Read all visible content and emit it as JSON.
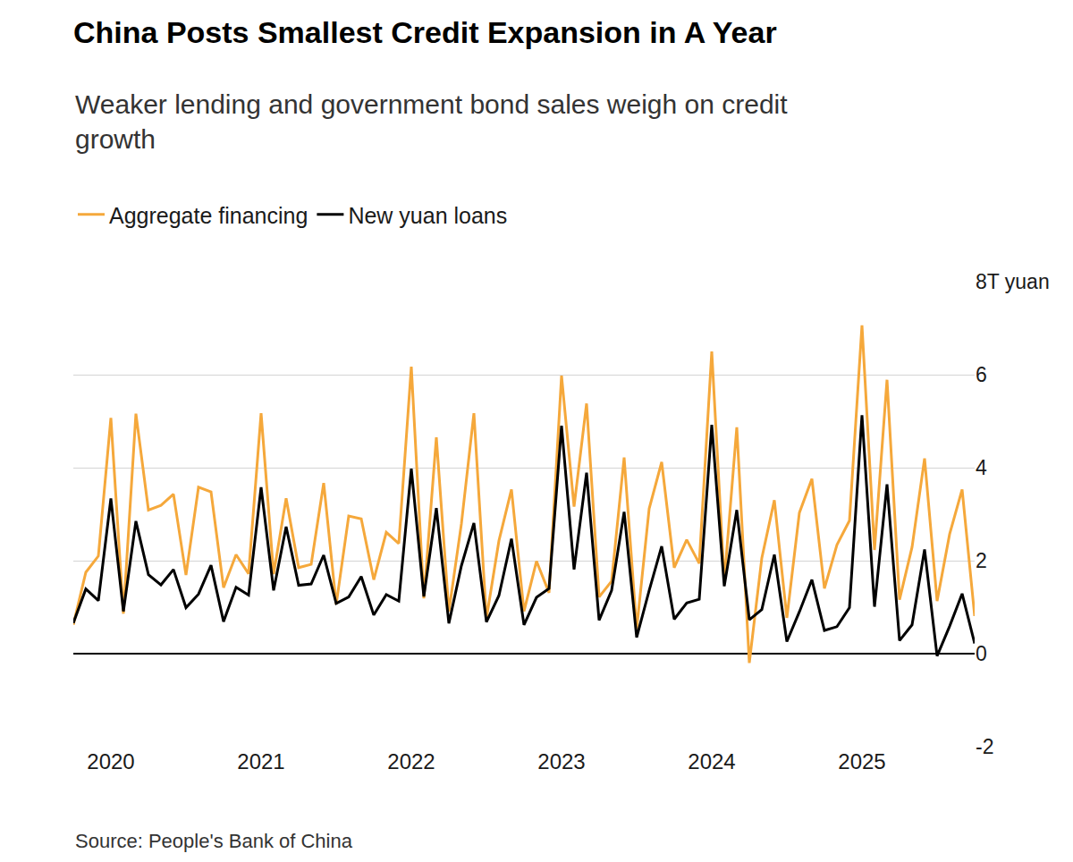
{
  "chart_data": {
    "type": "line",
    "title": "China Posts Smallest Credit Expansion in A Year",
    "subtitle": "Weaker lending and government bond sales weigh on credit growth",
    "source": "Source: People's Bank of China",
    "categories": [
      null,
      null,
      null,
      "2020",
      null,
      null,
      null,
      null,
      null,
      null,
      null,
      null,
      null,
      null,
      null,
      "2021",
      null,
      null,
      null,
      null,
      null,
      null,
      null,
      null,
      null,
      null,
      null,
      "2022",
      null,
      null,
      null,
      null,
      null,
      null,
      null,
      null,
      null,
      null,
      null,
      "2023",
      null,
      null,
      null,
      null,
      null,
      null,
      null,
      null,
      null,
      null,
      null,
      "2024",
      null,
      null,
      null,
      null,
      null,
      null,
      null,
      null,
      null,
      null,
      null,
      "2025",
      null,
      null,
      null,
      null,
      null,
      null,
      null,
      null,
      null
    ],
    "series": [
      {
        "name": "Aggregate financing",
        "color": "#f5a83b",
        "values": [
          0.62,
          1.75,
          2.1,
          5.07,
          0.86,
          5.16,
          3.09,
          3.19,
          3.43,
          1.69,
          3.58,
          3.48,
          1.42,
          2.13,
          1.72,
          5.17,
          1.71,
          3.34,
          1.85,
          1.92,
          3.67,
          1.06,
          2.96,
          2.9,
          1.59,
          2.61,
          2.37,
          6.17,
          1.19,
          4.65,
          0.91,
          2.79,
          5.17,
          0.76,
          2.43,
          3.53,
          0.91,
          1.99,
          1.31,
          5.98,
          3.16,
          5.38,
          1.22,
          1.56,
          4.22,
          0.53,
          3.12,
          4.12,
          1.85,
          2.45,
          1.94,
          6.5,
          1.56,
          4.87,
          -0.2,
          2.06,
          3.3,
          0.77,
          3.03,
          3.76,
          1.4,
          2.34,
          2.86,
          7.06,
          2.23,
          5.89,
          1.16,
          2.29,
          4.2,
          1.13,
          2.57,
          3.53,
          0.81
        ]
      },
      {
        "name": "New yuan loans",
        "color": "#000000",
        "values": [
          0.66,
          1.39,
          1.14,
          3.34,
          0.91,
          2.85,
          1.7,
          1.48,
          1.81,
          0.99,
          1.28,
          1.9,
          0.69,
          1.43,
          1.26,
          3.58,
          1.36,
          2.73,
          1.47,
          1.5,
          2.12,
          1.08,
          1.22,
          1.66,
          0.83,
          1.27,
          1.13,
          3.98,
          1.23,
          3.13,
          0.65,
          1.89,
          2.81,
          0.68,
          1.25,
          2.47,
          0.62,
          1.21,
          1.4,
          4.9,
          1.81,
          3.89,
          0.72,
          1.36,
          3.05,
          0.35,
          1.36,
          2.31,
          0.74,
          1.09,
          1.17,
          4.92,
          1.45,
          3.09,
          0.73,
          0.95,
          2.13,
          0.26,
          0.9,
          1.59,
          0.5,
          0.58,
          0.99,
          5.13,
          1.01,
          3.64,
          0.28,
          0.62,
          2.24,
          -0.05,
          0.59,
          1.29,
          0.22
        ]
      }
    ],
    "ylim": [
      -2,
      8
    ],
    "yticks": [
      -2,
      0,
      2,
      4,
      6,
      {
        "value": 8,
        "label": "8T yuan"
      }
    ],
    "grid": true,
    "legend": "top-left"
  }
}
